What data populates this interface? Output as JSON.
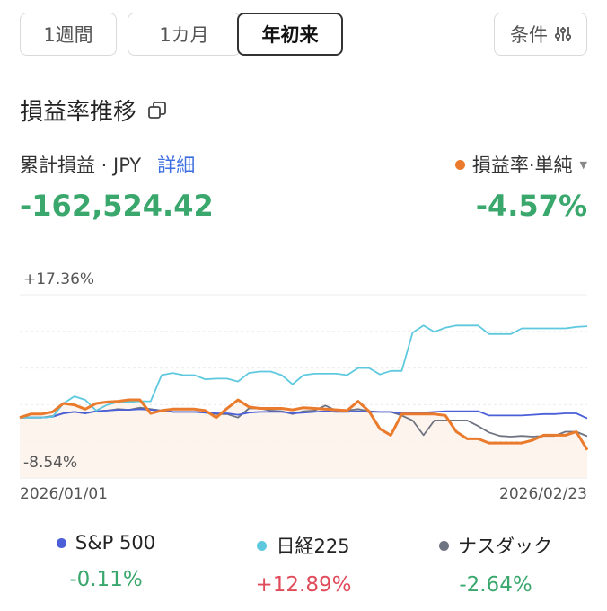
{
  "tabs": [
    {
      "label": "1週間"
    },
    {
      "label": "1カ月"
    },
    {
      "label": "年初来"
    }
  ],
  "condition": {
    "label": "条件"
  },
  "section": {
    "title": "損益率推移"
  },
  "summary": {
    "cum_label": "累計損益 · JPY",
    "detail_label": "詳細",
    "cum_value": "-162,524.42",
    "rate_label": "損益率·単純",
    "rate_value": "-4.57%"
  },
  "colors": {
    "portfolio": "#ea7b2c",
    "sp500": "#4a5fd8",
    "nikkei": "#5ec9de",
    "nasdaq": "#6f7482",
    "positive": "#e04b5a",
    "negative": "#3aa76d"
  },
  "chart_data": {
    "type": "line",
    "y_top_label": "+17.36%",
    "y_bottom_label": "-8.54%",
    "x_start_label": "2026/01/01",
    "x_end_label": "2026/02/23",
    "ylim": [
      -8.54,
      17.36
    ],
    "series": [
      {
        "key": "nikkei",
        "values": [
          0,
          0,
          0,
          0.1,
          2.0,
          3.0,
          2.5,
          1.0,
          1.8,
          2.2,
          2.2,
          2.3,
          2.3,
          6.0,
          6.3,
          6.0,
          6.0,
          5.4,
          5.5,
          5.5,
          5.1,
          6.3,
          6.5,
          6.5,
          6.0,
          4.7,
          6.0,
          6.2,
          6.2,
          6.2,
          6.0,
          7.0,
          7.0,
          6.1,
          6.6,
          6.6,
          12.0,
          13.0,
          12.1,
          12.7,
          13.0,
          13.0,
          13.0,
          11.8,
          11.8,
          11.8,
          12.6,
          12.6,
          12.6,
          12.6,
          12.6,
          12.8,
          12.9
        ]
      },
      {
        "key": "sp500",
        "values": [
          0,
          0,
          0,
          0.1,
          0.6,
          0.8,
          0.6,
          0.9,
          1.0,
          1.1,
          1.1,
          1.2,
          1.1,
          1.0,
          0.8,
          0.8,
          0.8,
          0.7,
          0.6,
          0.6,
          0.4,
          0.7,
          0.8,
          0.8,
          0.8,
          0.6,
          0.7,
          0.8,
          0.9,
          0.8,
          0.8,
          0.9,
          0.8,
          0.8,
          0.8,
          0.6,
          0.7,
          0.7,
          0.8,
          0.9,
          0.9,
          0.9,
          0.9,
          0.3,
          0.3,
          0.3,
          0.3,
          0.4,
          0.5,
          0.5,
          0.6,
          0.6,
          -0.11
        ]
      },
      {
        "key": "nasdaq",
        "values": [
          0,
          0,
          0,
          0.2,
          0.6,
          0.8,
          0.6,
          0.9,
          1.0,
          1.2,
          1.1,
          1.4,
          1.2,
          1.0,
          0.8,
          0.8,
          0.8,
          0.7,
          0.5,
          0.5,
          0.0,
          1.3,
          1.3,
          1.0,
          0.9,
          0.5,
          0.9,
          1.0,
          1.7,
          1.0,
          1.0,
          1.2,
          0.9,
          0.8,
          0.8,
          0.3,
          -0.4,
          -2.5,
          -0.4,
          -0.4,
          -0.4,
          -0.4,
          -1.2,
          -2.1,
          -2.6,
          -2.7,
          -2.6,
          -2.7,
          -2.6,
          -2.6,
          -2.0,
          -2.0,
          -2.64
        ]
      },
      {
        "key": "portfolio",
        "values": [
          0,
          0.5,
          0.5,
          0.8,
          2.0,
          1.8,
          1.2,
          2.0,
          2.2,
          2.3,
          2.5,
          2.5,
          0.6,
          1.0,
          1.2,
          1.2,
          1.2,
          1.0,
          0.0,
          1.3,
          2.5,
          1.5,
          1.3,
          1.3,
          1.3,
          1.1,
          1.4,
          1.3,
          1.2,
          1.1,
          1.0,
          2.3,
          0.9,
          -1.6,
          -2.5,
          0.5,
          0.5,
          0.5,
          0.5,
          0.3,
          -2.0,
          -3.0,
          -3.0,
          -3.6,
          -3.6,
          -3.6,
          -3.6,
          -3.2,
          -2.5,
          -2.5,
          -2.5,
          -2.0,
          -4.57
        ]
      }
    ]
  },
  "legend": [
    {
      "key": "sp500",
      "name": "S&P 500",
      "value": "-0.11%",
      "sign": "negative"
    },
    {
      "key": "nikkei",
      "name": "日経225",
      "value": "+12.89%",
      "sign": "positive"
    },
    {
      "key": "nasdaq",
      "name": "ナスダック",
      "value": "-2.64%",
      "sign": "negative"
    }
  ]
}
